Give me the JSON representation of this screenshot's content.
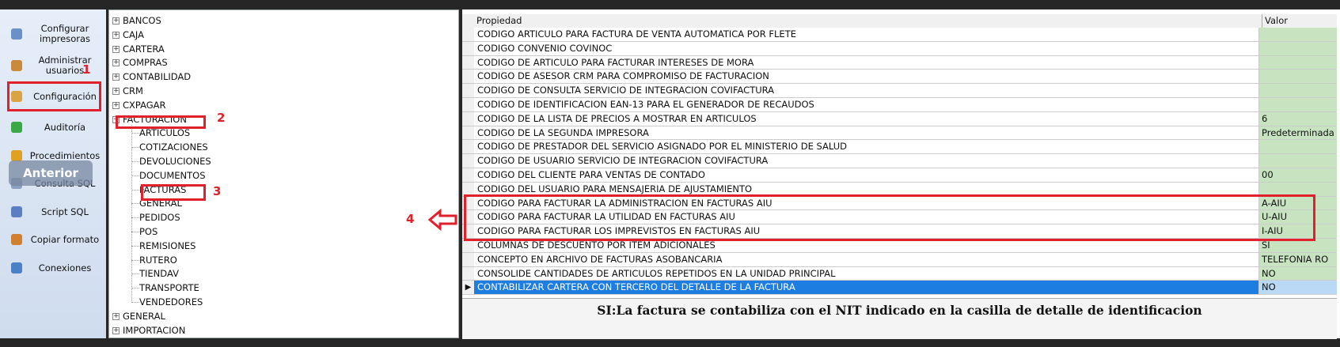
{
  "sidebar": {
    "items": [
      "Configurar impresoras",
      "Administrar usuarios",
      "Configuración",
      "Auditoría",
      "Procedimientos",
      "Consulta SQL",
      "Script SQL",
      "Copiar formato",
      "Conexiones"
    ],
    "overlay": "Anterior"
  },
  "tree": {
    "before": [
      "BANCOS",
      "CAJA",
      "CARTERA",
      "COMPRAS",
      "CONTABILIDAD",
      "CRM",
      "CXPAGAR"
    ],
    "expanded": {
      "label": "FACTURACION",
      "children": [
        "ARTICULOS",
        "COTIZACIONES",
        "DEVOLUCIONES",
        "DOCUMENTOS",
        "FACTURAS",
        "GENERAL",
        "PEDIDOS",
        "POS",
        "REMISIONES",
        "RUTERO",
        "TIENDAV",
        "TRANSPORTE",
        "VENDEDORES"
      ]
    },
    "after": [
      "GENERAL",
      "IMPORTACION"
    ]
  },
  "grid": {
    "headers": [
      "Propiedad",
      "Valor"
    ],
    "rows": [
      {
        "property": "CODIGO ARTICULO PARA FACTURA DE VENTA AUTOMATICA POR FLETE"
      },
      {
        "property": "CODIGO CONVENIO COVINOC"
      },
      {
        "property": "CODIGO DE ARTICULO PARA FACTURAR INTERESES DE MORA"
      },
      {
        "property": "CODIGO DE ASESOR CRM PARA COMPROMISO DE FACTURACION"
      },
      {
        "property": "CODIGO DE CONSULTA SERVICIO DE INTEGRACION COVIFACTURA"
      },
      {
        "property": "CODIGO DE IDENTIFICACION EAN-13 PARA EL GENERADOR DE RECAUDOS"
      },
      {
        "property": "CODIGO DE LA LISTA DE PRECIOS A MOSTRAR EN ARTICULOS",
        "value": "6"
      },
      {
        "property": "CODIGO DE LA SEGUNDA IMPRESORA",
        "value": "Predeterminada"
      },
      {
        "property": "CODIGO DE PRESTADOR DEL SERVICIO ASIGNADO POR EL MINISTERIO DE SALUD"
      },
      {
        "property": "CODIGO DE USUARIO SERVICIO DE INTEGRACION COVIFACTURA"
      },
      {
        "property": "CODIGO DEL CLIENTE PARA VENTAS DE CONTADO",
        "value": "00"
      },
      {
        "property": "CODIGO DEL USUARIO PARA MENSAJERIA DE AJUSTAMIENTO"
      },
      {
        "property": "CODIGO PARA FACTURAR LA ADMINISTRACION EN FACTURAS AIU",
        "value": "A-AIU"
      },
      {
        "property": "CODIGO PARA FACTURAR LA UTILIDAD EN FACTURAS AIU",
        "value": "U-AIU"
      },
      {
        "property": "CODIGO PARA FACTURAR LOS IMPREVISTOS EN FACTURAS AIU",
        "value": "I-AIU"
      },
      {
        "property": "COLUMNAS DE DESCUENTO POR ITEM ADICIONALES",
        "value": "SI"
      },
      {
        "property": "CONCEPTO EN ARCHIVO DE FACTURAS ASOBANCARIA",
        "value": "TELEFONIA RO"
      },
      {
        "property": "CONSOLIDE CANTIDADES DE ARTICULOS REPETIDOS EN LA UNIDAD PRINCIPAL",
        "value": "NO"
      },
      {
        "property": "CONTABILIZAR CARTERA CON TERCERO DEL DETALLE DE LA FACTURA",
        "value": "NO"
      }
    ],
    "description": "SI:La factura se contabiliza con el NIT indicado en la casilla de detalle de identificacion"
  },
  "annotations": [
    "1",
    "2",
    "3",
    "4"
  ]
}
